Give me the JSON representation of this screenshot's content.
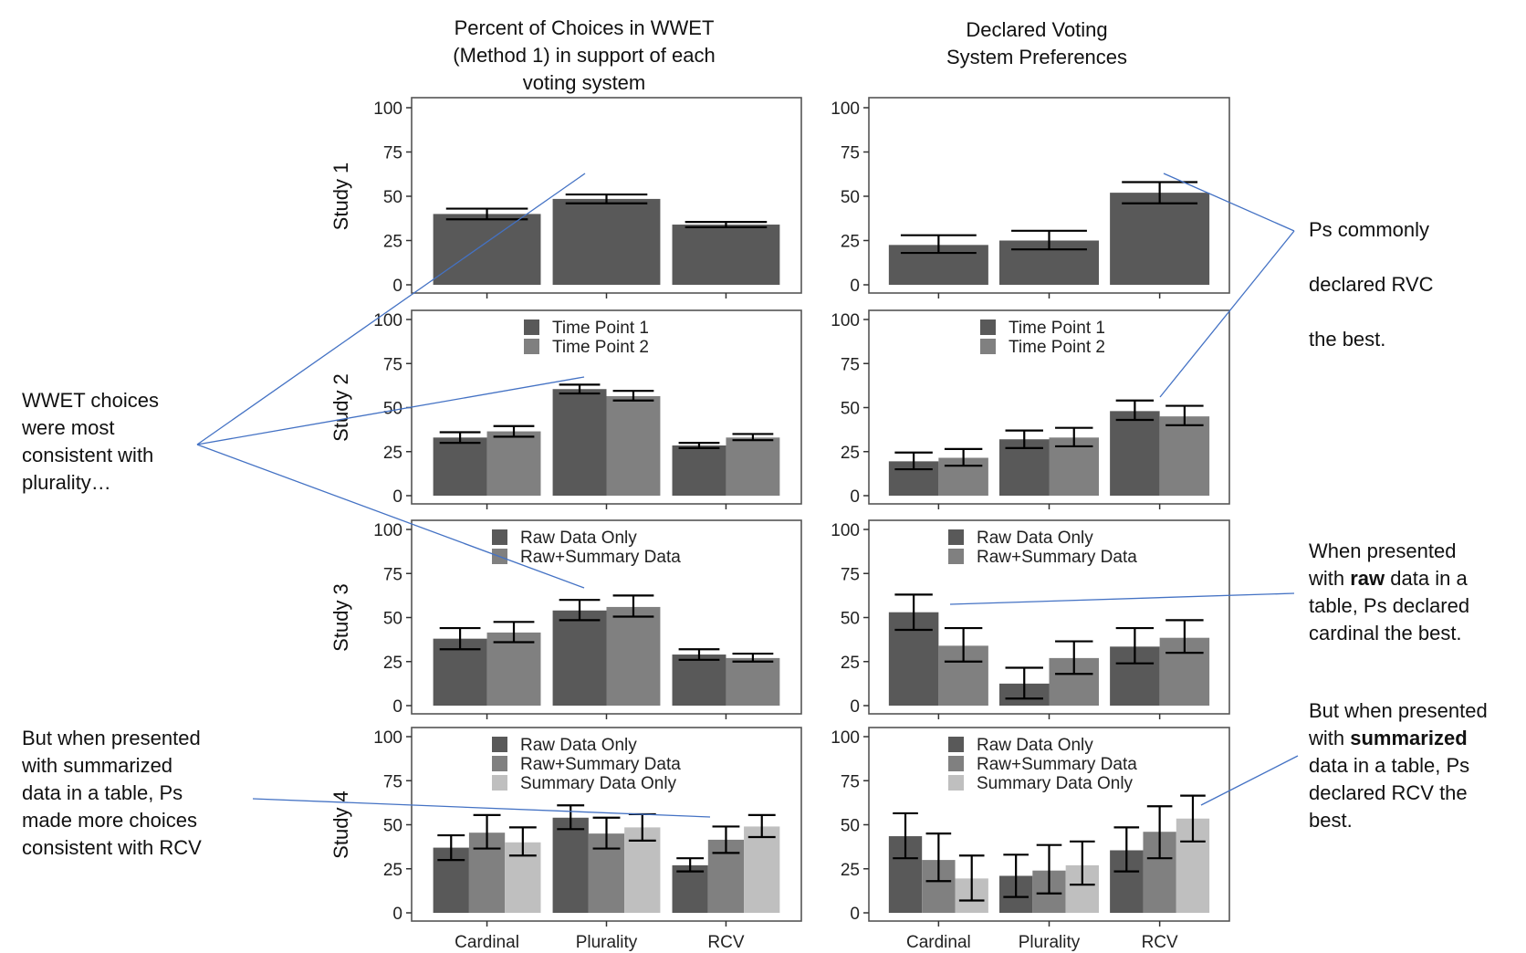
{
  "chart_data": [
    {
      "type": "bar",
      "panel": "study-1-wwet",
      "row_label": "Study 1",
      "column": "left",
      "title": "Percent of Choices in WWET (Method 1) in support of each voting system",
      "categories": [
        "Cardinal",
        "Plurality",
        "RCV"
      ],
      "ylim": [
        0,
        100
      ],
      "yticks": [
        0,
        25,
        50,
        75,
        100
      ],
      "legend": null,
      "series": [
        {
          "name": "Study 1",
          "color": "#595959",
          "values": [
            40,
            48.5,
            34
          ],
          "err_low": [
            37,
            46,
            32.5
          ],
          "err_high": [
            43,
            51,
            35.5
          ]
        }
      ]
    },
    {
      "type": "bar",
      "panel": "study-1-declared",
      "row_label": "Study 1",
      "column": "right",
      "title": "Declared Voting System Preferences",
      "categories": [
        "Cardinal",
        "Plurality",
        "RCV"
      ],
      "ylim": [
        0,
        100
      ],
      "yticks": [
        0,
        25,
        50,
        75,
        100
      ],
      "legend": null,
      "series": [
        {
          "name": "Study 1",
          "color": "#595959",
          "values": [
            22.5,
            25,
            52
          ],
          "err_low": [
            18,
            20,
            46
          ],
          "err_high": [
            28,
            30.5,
            58
          ]
        }
      ]
    },
    {
      "type": "bar",
      "panel": "study-2-wwet",
      "row_label": "Study 2",
      "column": "left",
      "categories": [
        "Cardinal",
        "Plurality",
        "RCV"
      ],
      "ylim": [
        0,
        100
      ],
      "yticks": [
        0,
        25,
        50,
        75,
        100
      ],
      "legend": "top-center",
      "series": [
        {
          "name": "Time Point 1",
          "color": "#595959",
          "values": [
            33,
            60.5,
            28.5
          ],
          "err_low": [
            30,
            58,
            27
          ],
          "err_high": [
            36,
            63,
            30
          ]
        },
        {
          "name": "Time Point 2",
          "color": "#808080",
          "values": [
            36.5,
            56.5,
            33
          ],
          "err_low": [
            33.5,
            54,
            31.5
          ],
          "err_high": [
            39.5,
            59.5,
            35
          ]
        }
      ]
    },
    {
      "type": "bar",
      "panel": "study-2-declared",
      "row_label": "Study 2",
      "column": "right",
      "categories": [
        "Cardinal",
        "Plurality",
        "RCV"
      ],
      "ylim": [
        0,
        100
      ],
      "yticks": [
        0,
        25,
        50,
        75,
        100
      ],
      "legend": "top-center",
      "series": [
        {
          "name": "Time Point 1",
          "color": "#595959",
          "values": [
            19.5,
            32,
            48
          ],
          "err_low": [
            15,
            27,
            43
          ],
          "err_high": [
            24.5,
            37,
            54
          ]
        },
        {
          "name": "Time Point 2",
          "color": "#808080",
          "values": [
            21.5,
            33,
            45
          ],
          "err_low": [
            17,
            28,
            40
          ],
          "err_high": [
            26.5,
            38.5,
            51
          ]
        }
      ]
    },
    {
      "type": "bar",
      "panel": "study-3-wwet",
      "row_label": "Study 3",
      "column": "left",
      "categories": [
        "Cardinal",
        "Plurality",
        "RCV"
      ],
      "ylim": [
        0,
        100
      ],
      "yticks": [
        0,
        25,
        50,
        75,
        100
      ],
      "legend": "top-center",
      "series": [
        {
          "name": "Raw Data Only",
          "color": "#595959",
          "values": [
            38,
            54,
            29
          ],
          "err_low": [
            32,
            48.5,
            26
          ],
          "err_high": [
            44,
            60,
            32
          ]
        },
        {
          "name": "Raw+Summary Data",
          "color": "#808080",
          "values": [
            41.5,
            56,
            27
          ],
          "err_low": [
            36,
            50.5,
            25
          ],
          "err_high": [
            47.5,
            62.5,
            29.5
          ]
        }
      ]
    },
    {
      "type": "bar",
      "panel": "study-3-declared",
      "row_label": "Study 3",
      "column": "right",
      "categories": [
        "Cardinal",
        "Plurality",
        "RCV"
      ],
      "ylim": [
        0,
        100
      ],
      "yticks": [
        0,
        25,
        50,
        75,
        100
      ],
      "legend": "top-center",
      "series": [
        {
          "name": "Raw Data Only",
          "color": "#595959",
          "values": [
            53,
            12.5,
            33.5
          ],
          "err_low": [
            43,
            4,
            24
          ],
          "err_high": [
            63,
            21.5,
            44
          ]
        },
        {
          "name": "Raw+Summary Data",
          "color": "#808080",
          "values": [
            34,
            27,
            38.5
          ],
          "err_low": [
            25,
            18,
            30
          ],
          "err_high": [
            44,
            36.5,
            48.5
          ]
        }
      ]
    },
    {
      "type": "bar",
      "panel": "study-4-wwet",
      "row_label": "Study 4",
      "column": "left",
      "categories": [
        "Cardinal",
        "Plurality",
        "RCV"
      ],
      "ylim": [
        0,
        100
      ],
      "yticks": [
        0,
        25,
        50,
        75,
        100
      ],
      "legend": "top-center",
      "series": [
        {
          "name": "Raw Data Only",
          "color": "#595959",
          "values": [
            37,
            54,
            27
          ],
          "err_low": [
            30,
            47.5,
            23.5
          ],
          "err_high": [
            44,
            61,
            31
          ]
        },
        {
          "name": "Raw+Summary Data",
          "color": "#808080",
          "values": [
            45.5,
            45,
            41.5
          ],
          "err_low": [
            36.5,
            36.5,
            34
          ],
          "err_high": [
            55.5,
            54,
            49
          ]
        },
        {
          "name": "Summary Data Only",
          "color": "#bfbfbf",
          "values": [
            40,
            48.5,
            49
          ],
          "err_low": [
            32.5,
            41,
            43
          ],
          "err_high": [
            48.5,
            56,
            55.5
          ]
        }
      ]
    },
    {
      "type": "bar",
      "panel": "study-4-declared",
      "row_label": "Study 4",
      "column": "right",
      "categories": [
        "Cardinal",
        "Plurality",
        "RCV"
      ],
      "ylim": [
        0,
        100
      ],
      "yticks": [
        0,
        25,
        50,
        75,
        100
      ],
      "legend": "top-center",
      "series": [
        {
          "name": "Raw Data Only",
          "color": "#595959",
          "values": [
            43.5,
            21,
            35.5
          ],
          "err_low": [
            31,
            9,
            23.5
          ],
          "err_high": [
            56.5,
            33,
            48.5
          ]
        },
        {
          "name": "Raw+Summary Data",
          "color": "#808080",
          "values": [
            30,
            24,
            46
          ],
          "err_low": [
            18,
            11,
            31
          ],
          "err_high": [
            45,
            38.5,
            60.5
          ]
        },
        {
          "name": "Summary Data Only",
          "color": "#bfbfbf",
          "values": [
            19.5,
            27,
            53.5
          ],
          "err_low": [
            7,
            16,
            40.5
          ],
          "err_high": [
            32.5,
            40.5,
            66.5
          ]
        }
      ]
    }
  ],
  "column_titles": {
    "left": "Percent of Choices in WWET\n(Method 1) in support of each\nvoting system",
    "right": "Declared Voting\nSystem Preferences"
  },
  "row_labels": [
    "Study 1",
    "Study 2",
    "Study 3",
    "Study 4"
  ],
  "x_labels": [
    "Cardinal",
    "Plurality",
    "RCV"
  ],
  "annotations": {
    "wwet_plurality": "WWET choices\nwere most\nconsistent with\nplurality…",
    "wwet_rcv": "But when presented\nwith summarized\ndata in a table, Ps\nmade more choices\nconsistent with RCV",
    "declared_rcv_line1": "Ps commonly",
    "declared_rcv_line2": "declared RVC",
    "declared_rcv_line3": "the best.",
    "raw_cardinal": {
      "pre": "When presented\nwith ",
      "bold": "raw",
      "post": " data in a\ntable, Ps declared\ncardinal the best."
    },
    "summary_rcv": {
      "pre": "But when presented\nwith ",
      "bold": "summarized",
      "post": "\ndata in a table, Ps\ndeclared RCV the\nbest."
    }
  },
  "colors": {
    "callout_line": "#4472c4",
    "frame": "#333333",
    "text": "#111111"
  }
}
